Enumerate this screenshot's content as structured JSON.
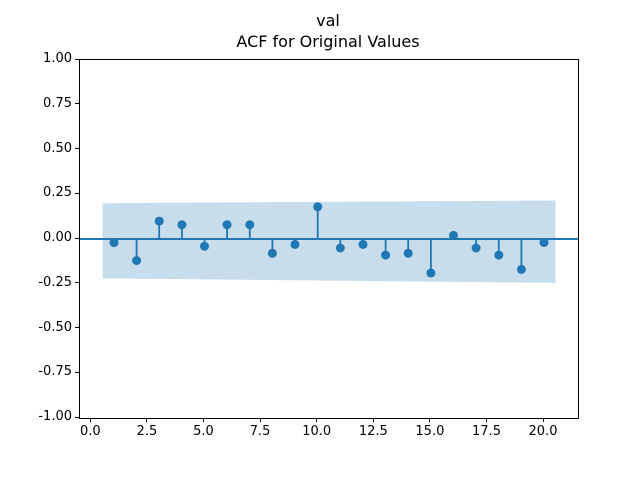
{
  "title": {
    "line1": "val",
    "line2": "ACF for Original Values"
  },
  "chart_data": {
    "type": "stem",
    "subtype": "autocorrelation",
    "title": "val\nACF for Original Values",
    "xlabel": "",
    "ylabel": "",
    "xlim": [
      -0.5,
      21.5
    ],
    "ylim": [
      -1.0,
      1.0
    ],
    "grid": false,
    "legend": null,
    "lags": [
      1,
      2,
      3,
      4,
      5,
      6,
      7,
      8,
      9,
      10,
      11,
      12,
      13,
      14,
      15,
      16,
      17,
      18,
      19,
      20
    ],
    "values": [
      -0.02,
      -0.12,
      0.1,
      0.08,
      -0.04,
      0.08,
      0.08,
      -0.08,
      -0.03,
      0.18,
      -0.05,
      -0.03,
      -0.09,
      -0.08,
      -0.19,
      0.02,
      -0.05,
      -0.09,
      -0.17,
      -0.02
    ],
    "zero_line_y": 0.0,
    "conf_band": {
      "x": [
        0.5,
        20.5
      ],
      "top": [
        0.2,
        0.215
      ],
      "bottom": [
        -0.22,
        -0.245
      ]
    },
    "xticks": {
      "values": [
        0,
        2.5,
        5,
        7.5,
        10,
        12.5,
        15,
        17.5,
        20
      ],
      "labels": [
        "0.0",
        "2.5",
        "5.0",
        "7.5",
        "10.0",
        "12.5",
        "15.0",
        "17.5",
        "20.0"
      ]
    },
    "yticks": {
      "values": [
        1.0,
        0.75,
        0.5,
        0.25,
        0.0,
        -0.25,
        -0.5,
        -0.75,
        -1.0
      ],
      "labels": [
        "1.00",
        "0.75",
        "0.50",
        "0.25",
        "0.00",
        "-0.25",
        "-0.50",
        "-0.75",
        "-1.00"
      ]
    },
    "colors": {
      "series": "#1f77b4",
      "band": "#c7ddec",
      "axis": "#000000",
      "text": "#000000",
      "background": "#ffffff"
    }
  }
}
